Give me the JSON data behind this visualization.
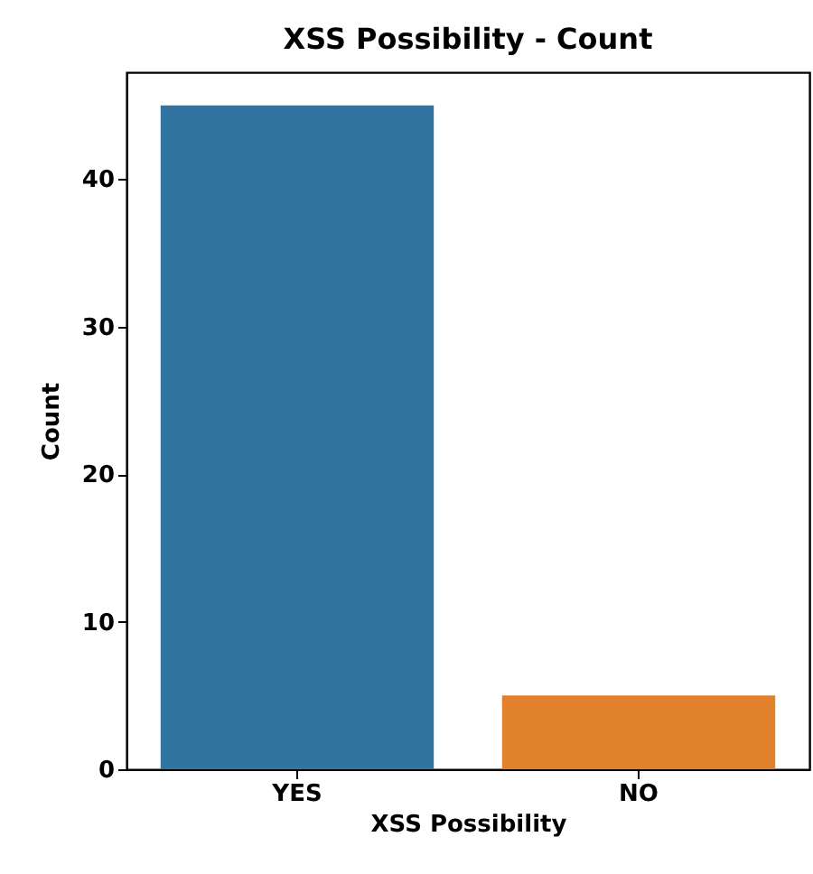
{
  "chart_data": {
    "type": "bar",
    "title": "XSS Possibility - Count",
    "xlabel": "XSS Possibility",
    "ylabel": "Count",
    "categories": [
      "YES",
      "NO"
    ],
    "values": [
      45,
      5
    ],
    "colors": [
      "#3274a1",
      "#e1812c"
    ],
    "ylim": [
      0,
      47.25
    ],
    "yticks": [
      0,
      10,
      20,
      30,
      40
    ],
    "grid": false,
    "legend": false
  }
}
